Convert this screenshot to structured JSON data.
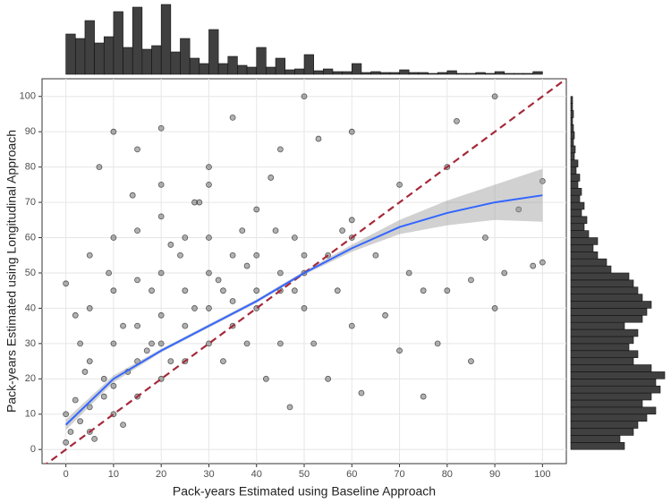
{
  "chart_data": {
    "type": "scatter",
    "x_label": "Pack-years Estimated using Baseline Approach",
    "y_label": "Pack-years Estimated using Longitudinal Approach",
    "xlim": [
      -5,
      105
    ],
    "ylim": [
      -4,
      105
    ],
    "xticks": [
      0,
      10,
      20,
      30,
      40,
      50,
      60,
      70,
      80,
      90,
      100
    ],
    "yticks": [
      0,
      10,
      20,
      30,
      40,
      50,
      60,
      70,
      80,
      90,
      100
    ],
    "grid": true,
    "points": {
      "color": "#000000",
      "x": [
        0,
        0,
        0,
        1,
        2,
        3,
        5,
        5,
        5,
        5,
        5,
        7,
        8,
        10,
        10,
        10,
        10,
        10,
        10,
        12,
        13,
        15,
        15,
        15,
        15,
        15,
        15,
        17,
        18,
        20,
        20,
        20,
        20,
        20,
        20,
        20,
        22,
        24,
        25,
        25,
        25,
        25,
        27,
        28,
        30,
        30,
        30,
        30,
        30,
        30,
        32,
        33,
        35,
        35,
        35,
        35,
        37,
        38,
        40,
        40,
        40,
        40,
        42,
        43,
        45,
        45,
        45,
        45,
        47,
        48,
        50,
        50,
        50,
        50,
        52,
        53,
        55,
        55,
        57,
        58,
        60,
        60,
        60,
        60,
        62,
        65,
        67,
        70,
        70,
        72,
        75,
        75,
        78,
        80,
        80,
        82,
        85,
        85,
        88,
        90,
        90,
        92,
        95,
        98,
        100,
        100,
        3,
        6,
        8,
        12,
        18,
        22,
        27,
        33,
        38,
        44,
        48,
        2,
        4,
        9,
        14
      ],
      "y": [
        2,
        10,
        47,
        5,
        14,
        30,
        5,
        12,
        25,
        40,
        55,
        80,
        20,
        10,
        18,
        30,
        45,
        60,
        90,
        35,
        22,
        15,
        25,
        35,
        48,
        62,
        85,
        28,
        45,
        20,
        30,
        38,
        50,
        66,
        75,
        91,
        25,
        55,
        25,
        35,
        45,
        60,
        40,
        70,
        30,
        40,
        50,
        60,
        75,
        80,
        48,
        25,
        35,
        42,
        55,
        94,
        62,
        30,
        40,
        45,
        55,
        68,
        20,
        77,
        45,
        50,
        30,
        85,
        12,
        60,
        50,
        55,
        40,
        100,
        30,
        88,
        55,
        20,
        45,
        62,
        60,
        65,
        90,
        35,
        16,
        55,
        38,
        28,
        75,
        50,
        15,
        45,
        30,
        80,
        45,
        93,
        25,
        48,
        60,
        100,
        40,
        50,
        68,
        52,
        53,
        76,
        8,
        3,
        15,
        7,
        30,
        58,
        70,
        45,
        52,
        62,
        45,
        38,
        22,
        50,
        72
      ]
    },
    "smooth": {
      "color": "#3366ff",
      "x": [
        0,
        10,
        20,
        30,
        40,
        50,
        60,
        70,
        80,
        90,
        100
      ],
      "y": [
        7,
        20,
        28,
        35,
        42,
        50,
        57,
        63,
        67,
        70,
        72
      ],
      "lower": [
        5.5,
        19,
        27.5,
        34.5,
        41.5,
        49.5,
        56,
        61,
        63.5,
        65,
        64.5
      ],
      "upper": [
        8.5,
        21,
        28.5,
        35.5,
        42.5,
        50.5,
        58,
        65,
        70.5,
        75,
        79.5
      ]
    },
    "reference_line": {
      "color": "#a52a3a",
      "x": [
        -5,
        105
      ],
      "y": [
        -5,
        105
      ]
    },
    "x_histogram": {
      "color": "#404040",
      "bins": [
        0,
        2,
        4,
        6,
        8,
        10,
        12,
        14,
        16,
        18,
        20,
        22,
        24,
        26,
        28,
        30,
        32,
        34,
        36,
        38,
        40,
        42,
        44,
        46,
        48,
        50,
        52,
        54,
        56,
        58,
        60,
        62,
        64,
        66,
        68,
        70,
        72,
        74,
        76,
        78,
        80,
        82,
        84,
        86,
        88,
        90,
        92,
        94,
        96,
        98,
        100
      ],
      "counts": [
        45,
        40,
        60,
        35,
        42,
        70,
        30,
        75,
        28,
        32,
        78,
        25,
        40,
        18,
        12,
        50,
        12,
        20,
        10,
        8,
        30,
        8,
        18,
        5,
        6,
        22,
        4,
        6,
        3,
        3,
        12,
        2,
        3,
        2,
        2,
        5,
        2,
        2,
        1,
        2,
        4,
        1,
        1,
        2,
        1,
        3,
        1,
        1,
        1,
        3
      ]
    },
    "y_histogram": {
      "color": "#404040",
      "bins": [
        0,
        2,
        4,
        6,
        8,
        10,
        12,
        14,
        16,
        18,
        20,
        22,
        24,
        26,
        28,
        30,
        32,
        34,
        36,
        38,
        40,
        42,
        44,
        46,
        48,
        50,
        52,
        54,
        56,
        58,
        60,
        62,
        64,
        66,
        68,
        70,
        72,
        74,
        76,
        78,
        80,
        82,
        84,
        86,
        88,
        90,
        92,
        94,
        96,
        98,
        100
      ],
      "counts": [
        60,
        55,
        70,
        75,
        85,
        95,
        80,
        90,
        100,
        95,
        105,
        90,
        70,
        75,
        65,
        70,
        75,
        60,
        80,
        85,
        90,
        80,
        75,
        70,
        65,
        45,
        40,
        30,
        25,
        30,
        20,
        15,
        18,
        12,
        15,
        10,
        12,
        8,
        10,
        6,
        8,
        4,
        5,
        3,
        4,
        3,
        2,
        3,
        2,
        2
      ]
    }
  }
}
